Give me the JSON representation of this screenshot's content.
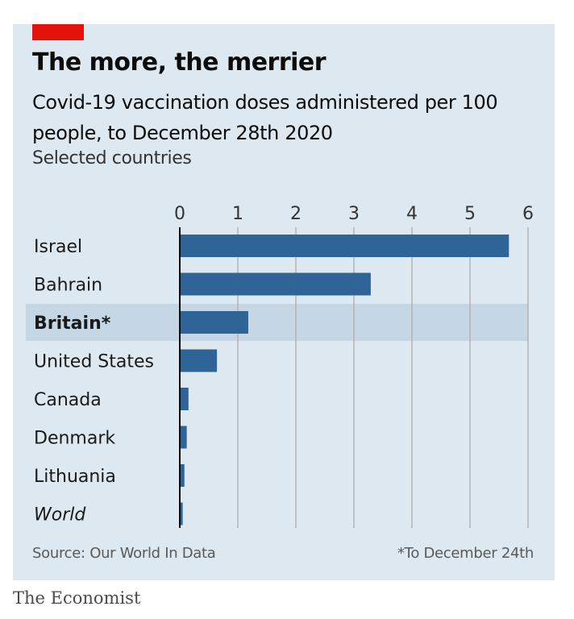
{
  "header": {
    "title": "The more, the merrier",
    "subtitle": "Covid-19 vaccination doses administered per 100 people, to December 28th 2020",
    "note": "Selected countries"
  },
  "footer": {
    "source": "Source: Our World In Data",
    "footnote": "*To December 24th",
    "brand": "The Economist"
  },
  "colors": {
    "bar": "#2e6496",
    "highlight_band": "#c5d7e4",
    "panel": "#dde8f0",
    "accent": "#e3120b",
    "grid": "#b4b4b4",
    "axis": "#0c0c0c"
  },
  "chart_data": {
    "type": "bar",
    "orientation": "horizontal",
    "title": "The more, the merrier",
    "subtitle": "Covid-19 vaccination doses administered per 100 people, to December 28th 2020",
    "categories": [
      "Israel",
      "Bahrain",
      "Britain*",
      "United States",
      "Canada",
      "Denmark",
      "Lithuania",
      "World"
    ],
    "values": [
      5.67,
      3.29,
      1.18,
      0.64,
      0.15,
      0.12,
      0.08,
      0.05
    ],
    "highlighted": [
      "Britain*"
    ],
    "italic": [
      "World"
    ],
    "xticks": [
      0,
      1,
      2,
      3,
      4,
      5,
      6
    ],
    "xlim": [
      0,
      6
    ],
    "grid": "vertical",
    "xlabel": "",
    "ylabel": ""
  }
}
